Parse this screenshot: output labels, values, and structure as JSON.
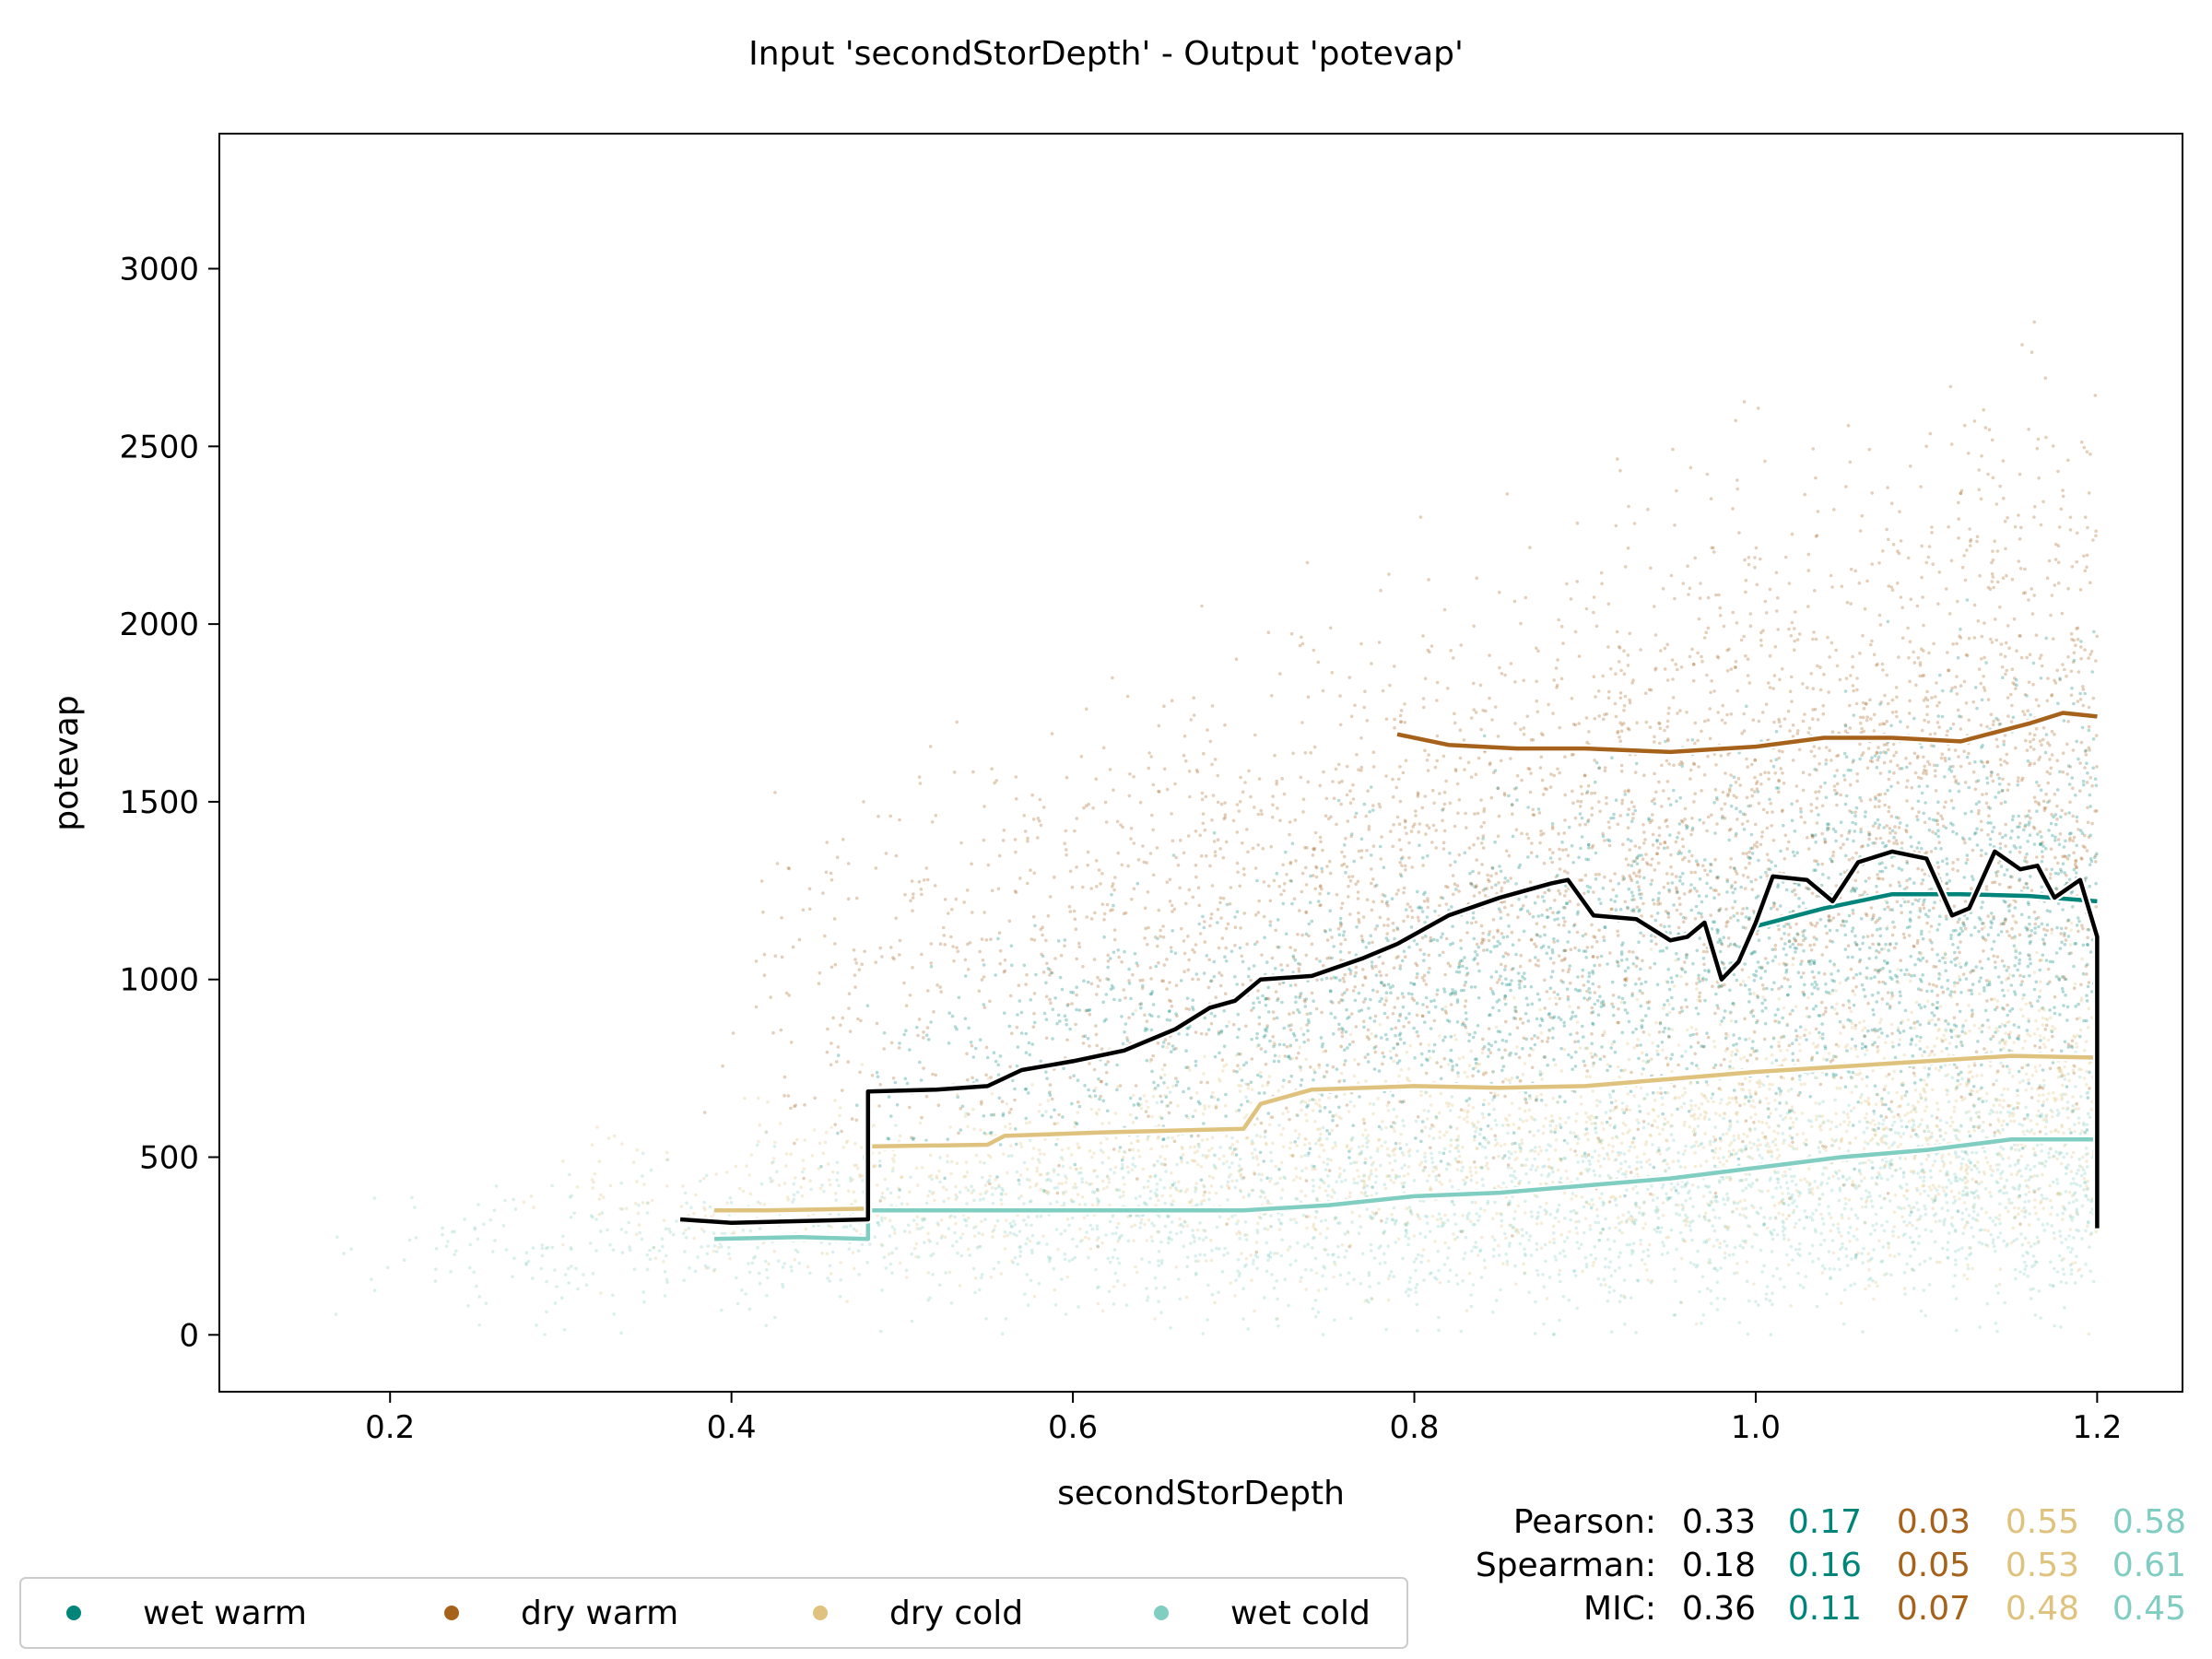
{
  "chart_data": {
    "type": "scatter",
    "title": "Input 'secondStorDepth' - Output 'potevap'",
    "xlabel": "secondStorDepth",
    "ylabel": "potevap",
    "xlim": [
      0.1,
      1.25
    ],
    "ylim": [
      -160,
      3380
    ],
    "xticks": [
      0.2,
      0.4,
      0.6,
      0.8,
      1.0,
      1.2
    ],
    "xtick_labels": [
      "0.2",
      "0.4",
      "0.6",
      "0.8",
      "1.0",
      "1.2"
    ],
    "yticks": [
      0,
      500,
      1000,
      1500,
      2000,
      2500,
      3000
    ],
    "ytick_labels": [
      "0",
      "500",
      "1000",
      "1500",
      "2000",
      "2500",
      "3000"
    ],
    "grid": false,
    "legend_position": "bottom-left",
    "series": [
      {
        "name": "wet warm",
        "color": "#01857a",
        "x_range": [
          0.45,
          1.2
        ],
        "y_center": 1250,
        "y_spread": 320
      },
      {
        "name": "dry warm",
        "color": "#a6611a",
        "x_range": [
          0.38,
          1.2
        ],
        "y_center": 1650,
        "y_spread": 480
      },
      {
        "name": "dry cold",
        "color": "#dfc27d",
        "x_range": [
          0.27,
          1.2
        ],
        "y_center": 650,
        "y_spread": 220
      },
      {
        "name": "wet cold",
        "color": "#80cdc1",
        "x_range": [
          0.15,
          1.2
        ],
        "y_center": 420,
        "y_spread": 180
      }
    ],
    "trend_lines": [
      {
        "name": "overall",
        "color": "#000000",
        "points": [
          [
            0.37,
            325
          ],
          [
            0.4,
            315
          ],
          [
            0.44,
            320
          ],
          [
            0.48,
            325
          ],
          [
            0.48,
            685
          ],
          [
            0.52,
            690
          ],
          [
            0.55,
            700
          ],
          [
            0.57,
            745
          ],
          [
            0.6,
            770
          ],
          [
            0.63,
            800
          ],
          [
            0.66,
            860
          ],
          [
            0.68,
            920
          ],
          [
            0.695,
            940
          ],
          [
            0.71,
            1000
          ],
          [
            0.74,
            1010
          ],
          [
            0.77,
            1060
          ],
          [
            0.79,
            1100
          ],
          [
            0.82,
            1180
          ],
          [
            0.85,
            1230
          ],
          [
            0.88,
            1270
          ],
          [
            0.89,
            1280
          ],
          [
            0.905,
            1180
          ],
          [
            0.93,
            1170
          ],
          [
            0.95,
            1110
          ],
          [
            0.96,
            1120
          ],
          [
            0.97,
            1160
          ],
          [
            0.98,
            1000
          ],
          [
            0.99,
            1050
          ],
          [
            1.0,
            1160
          ],
          [
            1.01,
            1290
          ],
          [
            1.03,
            1280
          ],
          [
            1.045,
            1220
          ],
          [
            1.06,
            1330
          ],
          [
            1.08,
            1360
          ],
          [
            1.1,
            1340
          ],
          [
            1.115,
            1180
          ],
          [
            1.125,
            1200
          ],
          [
            1.14,
            1360
          ],
          [
            1.155,
            1310
          ],
          [
            1.165,
            1320
          ],
          [
            1.175,
            1230
          ],
          [
            1.19,
            1280
          ],
          [
            1.2,
            1120
          ],
          [
            1.2,
            300
          ]
        ]
      },
      {
        "name": "wet warm",
        "color": "#01857a",
        "points": [
          [
            1.0,
            1150
          ],
          [
            1.04,
            1200
          ],
          [
            1.08,
            1240
          ],
          [
            1.12,
            1240
          ],
          [
            1.16,
            1235
          ],
          [
            1.2,
            1220
          ]
        ]
      },
      {
        "name": "dry warm",
        "color": "#a6611a",
        "points": [
          [
            0.79,
            1690
          ],
          [
            0.82,
            1660
          ],
          [
            0.86,
            1650
          ],
          [
            0.9,
            1650
          ],
          [
            0.95,
            1640
          ],
          [
            1.0,
            1655
          ],
          [
            1.04,
            1680
          ],
          [
            1.08,
            1680
          ],
          [
            1.12,
            1670
          ],
          [
            1.16,
            1720
          ],
          [
            1.18,
            1750
          ],
          [
            1.2,
            1740
          ]
        ]
      },
      {
        "name": "dry cold",
        "color": "#dfc27d",
        "points": [
          [
            0.39,
            350
          ],
          [
            0.42,
            350
          ],
          [
            0.48,
            355
          ],
          [
            0.48,
            530
          ],
          [
            0.55,
            535
          ],
          [
            0.56,
            560
          ],
          [
            0.62,
            570
          ],
          [
            0.7,
            580
          ],
          [
            0.71,
            650
          ],
          [
            0.74,
            690
          ],
          [
            0.8,
            700
          ],
          [
            0.85,
            695
          ],
          [
            0.9,
            700
          ],
          [
            0.95,
            720
          ],
          [
            1.0,
            740
          ],
          [
            1.05,
            755
          ],
          [
            1.1,
            770
          ],
          [
            1.15,
            785
          ],
          [
            1.2,
            780
          ]
        ]
      },
      {
        "name": "wet cold",
        "color": "#80cdc1",
        "points": [
          [
            0.39,
            270
          ],
          [
            0.44,
            275
          ],
          [
            0.48,
            270
          ],
          [
            0.48,
            350
          ],
          [
            0.6,
            350
          ],
          [
            0.7,
            350
          ],
          [
            0.75,
            365
          ],
          [
            0.8,
            390
          ],
          [
            0.85,
            400
          ],
          [
            0.9,
            420
          ],
          [
            0.95,
            440
          ],
          [
            1.0,
            470
          ],
          [
            1.05,
            500
          ],
          [
            1.1,
            520
          ],
          [
            1.15,
            550
          ],
          [
            1.2,
            550
          ]
        ]
      }
    ],
    "stats": {
      "columns_colors": [
        "#000000",
        "#01857a",
        "#a6611a",
        "#dfc27d",
        "#80cdc1"
      ],
      "rows": [
        {
          "label": "Pearson:",
          "values": [
            "0.33",
            "0.17",
            "0.03",
            "0.55",
            "0.58"
          ]
        },
        {
          "label": "Spearman:",
          "values": [
            "0.18",
            "0.16",
            "0.05",
            "0.53",
            "0.61"
          ]
        },
        {
          "label": "MIC:",
          "values": [
            "0.36",
            "0.11",
            "0.07",
            "0.48",
            "0.45"
          ]
        }
      ]
    }
  }
}
